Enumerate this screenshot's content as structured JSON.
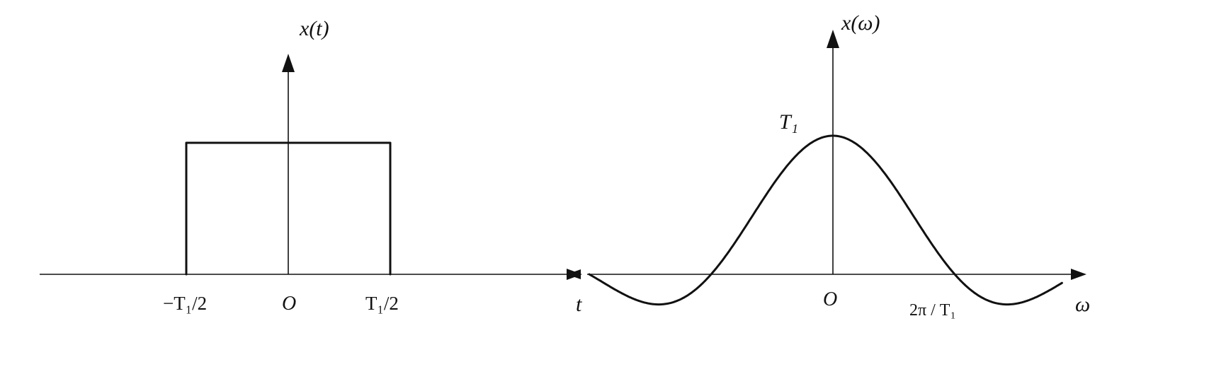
{
  "left_plot": {
    "y_label": "x(t)",
    "x_label": "t",
    "tick_left": "−T₁/2",
    "tick_origin": "O",
    "tick_right": "T₁/2"
  },
  "right_plot": {
    "y_label": "x(ω)",
    "x_label": "ω",
    "peak_label": "T₁",
    "tick_origin": "O",
    "tick_zero": "2π / T₁"
  },
  "chart_data": [
    {
      "type": "line",
      "title": "",
      "xlabel": "t",
      "ylabel": "x(t)",
      "description_of_shape": "rectangular pulse",
      "x": [
        "-T1/2",
        "-T1/2",
        "T1/2",
        "T1/2"
      ],
      "y": [
        0,
        1,
        1,
        0
      ]
    },
    {
      "type": "line",
      "title": "",
      "xlabel": "ω",
      "ylabel": "x(ω)",
      "description_of_shape": "sinc-shaped spectrum, peak T1 at ω = 0, zero crossings at multiples of 2π/T1",
      "x_unit": "2π/T1",
      "x": [
        -2.0,
        -1.5,
        -1.0,
        -0.5,
        0,
        0.5,
        1.0,
        1.5,
        2.0
      ],
      "y": [
        0,
        -0.21,
        0,
        0.64,
        1,
        0.64,
        0,
        -0.21,
        0
      ]
    }
  ]
}
